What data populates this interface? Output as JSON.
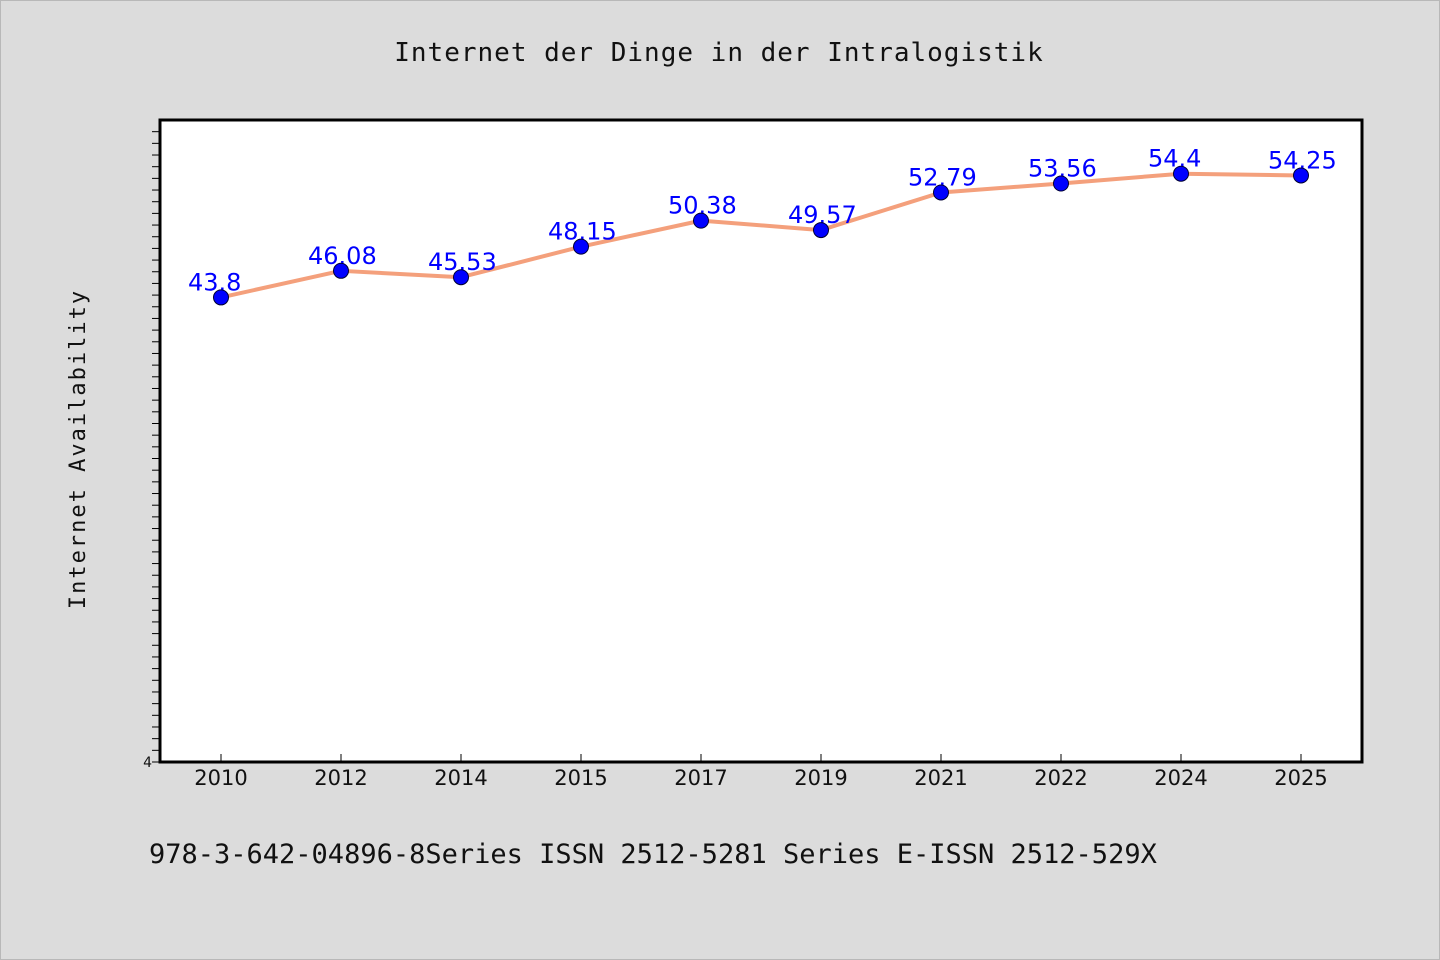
{
  "colors": {
    "background": "#dcdcdc",
    "plot_background": "#ffffff",
    "line": "#f4a07c",
    "marker": "#0000ff",
    "data_label": "#0000ff",
    "text": "#111111"
  },
  "footer": {
    "text": "978-3-642-04896-8Series ISSN 2512-5281 Series E-ISSN 2512-529X"
  },
  "chart_data": {
    "type": "line",
    "title": "Internet der Dinge in der Intralogistik",
    "xlabel": "",
    "ylabel": "Internet Availability",
    "categories": [
      "2010",
      "2012",
      "2014",
      "2015",
      "2017",
      "2019",
      "2021",
      "2022",
      "2024",
      "2025"
    ],
    "series": [
      {
        "values": [
          43.8,
          46.08,
          45.53,
          48.15,
          50.38,
          49.57,
          52.79,
          53.56,
          54.4,
          54.25
        ]
      }
    ],
    "data_labels": [
      "43.8",
      "46.08",
      "45.53",
      "48.15",
      "50.38",
      "49.57",
      "52.79",
      "53.56",
      "54.4",
      "54.25"
    ],
    "ylim": [
      4,
      59
    ],
    "y_tick_labels": [
      {
        "value": 4,
        "label": "4"
      }
    ],
    "grid": false,
    "legend": "none",
    "marker": "circle"
  }
}
